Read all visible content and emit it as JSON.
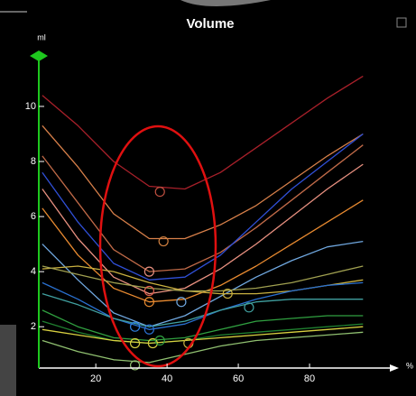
{
  "chart_data": {
    "type": "line",
    "title": "Volume",
    "y_label": "ml",
    "x_label": "%",
    "x": [
      5,
      15,
      25,
      35,
      45,
      55,
      65,
      75,
      85,
      95
    ],
    "xlim": [
      4,
      100
    ],
    "xticks": [
      20,
      40,
      60,
      80
    ],
    "ylim": [
      0.5,
      11.8
    ],
    "yticks": [
      2,
      4,
      6,
      8,
      10
    ],
    "series": [
      {
        "color": "#a8202a",
        "values": [
          10.4,
          9.3,
          8.0,
          7.1,
          7.0,
          7.6,
          8.5,
          9.4,
          10.3,
          11.1
        ]
      },
      {
        "color": "#d8804a",
        "values": [
          9.3,
          7.8,
          6.1,
          5.2,
          5.2,
          5.7,
          6.4,
          7.3,
          8.2,
          9.0
        ]
      },
      {
        "color": "#c06a48",
        "values": [
          8.2,
          6.5,
          4.8,
          4.0,
          4.1,
          4.7,
          5.6,
          6.6,
          7.6,
          8.6
        ]
      },
      {
        "color": "#3050d8",
        "values": [
          7.6,
          5.8,
          4.3,
          3.7,
          3.8,
          4.6,
          5.8,
          7.0,
          8.0,
          9.0
        ]
      },
      {
        "color": "#e89080",
        "values": [
          7.0,
          5.2,
          3.8,
          3.2,
          3.4,
          4.1,
          5.0,
          6.0,
          7.0,
          7.9
        ]
      },
      {
        "color": "#e88a30",
        "values": [
          6.3,
          4.6,
          3.4,
          2.9,
          3.0,
          3.5,
          4.2,
          5.0,
          5.8,
          6.6
        ]
      },
      {
        "color": "#70a8e0",
        "values": [
          5.0,
          3.7,
          2.5,
          2.0,
          2.4,
          3.1,
          3.8,
          4.4,
          4.9,
          5.1
        ]
      },
      {
        "color": "#c8b040",
        "values": [
          4.1,
          4.2,
          4.0,
          3.6,
          3.3,
          3.2,
          3.2,
          3.3,
          3.5,
          3.7
        ]
      },
      {
        "color": "#a0a050",
        "values": [
          4.2,
          3.9,
          3.6,
          3.4,
          3.3,
          3.3,
          3.4,
          3.6,
          3.9,
          4.2
        ]
      },
      {
        "color": "#2a70d0",
        "values": [
          3.6,
          3.0,
          2.3,
          1.9,
          2.1,
          2.6,
          3.0,
          3.3,
          3.5,
          3.6
        ]
      },
      {
        "color": "#40a0a0",
        "values": [
          3.2,
          2.8,
          2.3,
          2.0,
          2.2,
          2.6,
          2.9,
          3.0,
          3.0,
          3.0
        ]
      },
      {
        "color": "#30a040",
        "values": [
          2.6,
          2.0,
          1.6,
          1.5,
          1.6,
          1.9,
          2.2,
          2.3,
          2.4,
          2.4
        ]
      },
      {
        "color": "#208030",
        "values": [
          2.2,
          1.8,
          1.5,
          1.4,
          1.5,
          1.7,
          1.8,
          1.9,
          2.0,
          2.1
        ]
      },
      {
        "color": "#d8d040",
        "values": [
          1.9,
          1.7,
          1.5,
          1.4,
          1.5,
          1.6,
          1.7,
          1.8,
          1.9,
          2.0
        ]
      },
      {
        "color": "#90c070",
        "values": [
          1.5,
          1.1,
          0.8,
          0.7,
          1.0,
          1.3,
          1.5,
          1.6,
          1.7,
          1.8
        ]
      }
    ],
    "points": {
      "x": [
        38,
        39,
        35,
        35,
        35,
        44,
        57,
        31,
        35,
        31,
        36,
        38,
        46,
        31,
        63
      ],
      "y": [
        6.9,
        5.1,
        4.0,
        3.3,
        2.9,
        2.9,
        3.2,
        2.0,
        1.9,
        1.4,
        1.4,
        1.5,
        1.4,
        0.6,
        2.7
      ],
      "colors": [
        "#c05040",
        "#d08040",
        "#e89080",
        "#e06050",
        "#e88a30",
        "#70a8e0",
        "#c8b040",
        "#3080e0",
        "#2a70d0",
        "#d8d040",
        "#d8d040",
        "#30a040",
        "#c8b040",
        "#90c070",
        "#40a0a0"
      ]
    }
  }
}
